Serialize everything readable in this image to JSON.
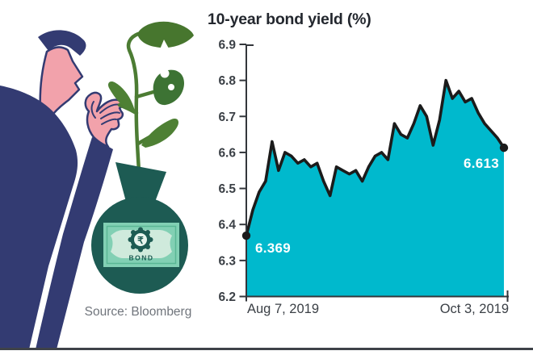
{
  "header": {
    "title": "10-year bond yield (%)"
  },
  "source": {
    "label": "Source: Bloomberg"
  },
  "illustration": {
    "description": "man bending over a plant growing out of a money bag",
    "bond_note": {
      "currency_symbol": "₹",
      "label": "BOND"
    },
    "colors": {
      "navy": "#333b72",
      "skin": "#f2a2ab",
      "leaf_green": "#4e8034",
      "leaf_green_dark": "#3d7334",
      "stem_green": "#4c7c33",
      "bag_teal": "#1d5b53",
      "note_mint": "#82d0b4",
      "note_light": "#cfeadc"
    }
  },
  "chart_data": {
    "type": "area",
    "title": "10-year bond yield (%)",
    "x_start_label": "Aug 7, 2019",
    "x_end_label": "Oct 3, 2019",
    "y_ticks": [
      "6.9",
      "6.8",
      "6.7",
      "6.6",
      "6.5",
      "6.4",
      "6.3",
      "6.2"
    ],
    "ylim": [
      6.2,
      6.9
    ],
    "values": [
      6.369,
      6.44,
      6.49,
      6.52,
      6.63,
      6.55,
      6.6,
      6.59,
      6.57,
      6.58,
      6.56,
      6.57,
      6.52,
      6.48,
      6.56,
      6.55,
      6.54,
      6.55,
      6.52,
      6.56,
      6.59,
      6.6,
      6.58,
      6.68,
      6.65,
      6.64,
      6.68,
      6.73,
      6.7,
      6.62,
      6.69,
      6.8,
      6.75,
      6.77,
      6.74,
      6.75,
      6.71,
      6.68,
      6.66,
      6.64,
      6.613
    ],
    "first_point_label": "6.369",
    "last_point_label": "6.613",
    "area_color": "#00b9cd",
    "line_color": "#1b1b1b",
    "axis_color": "#33363b",
    "grid": false,
    "legend": false
  }
}
